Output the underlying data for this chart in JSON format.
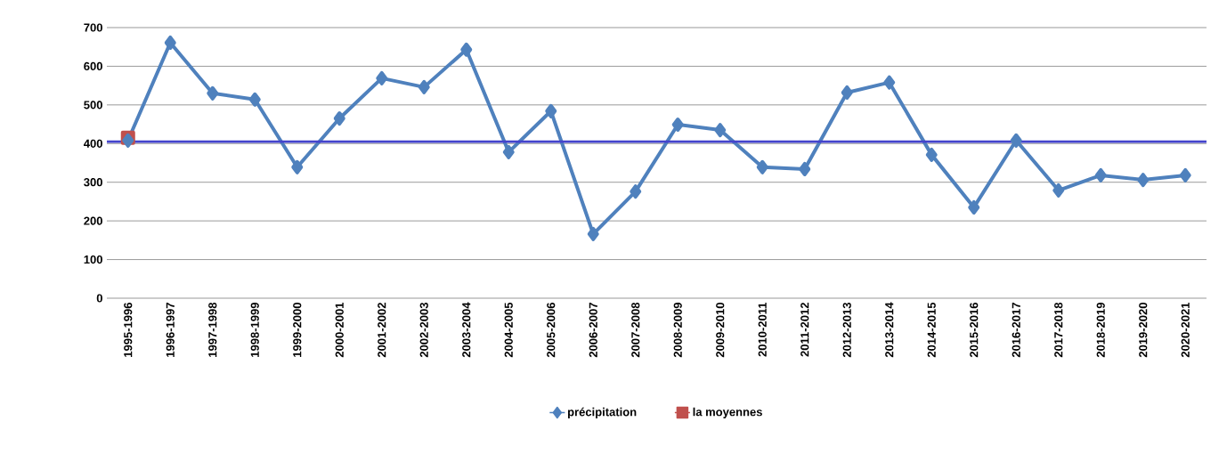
{
  "chart_data": {
    "type": "line",
    "categories": [
      "1995-1996",
      "1996-1997",
      "1997-1998",
      "1998-1999",
      "1999-2000",
      "2000-2001",
      "2001-2002",
      "2002-2003",
      "2003-2004",
      "2004-2005",
      "2005-2006",
      "2006-2007",
      "2007-2008",
      "2008-2009",
      "2009-2010",
      "2010-2011",
      "2011-2012",
      "2012-2013",
      "2013-2014",
      "2014-2015",
      "2015-2016",
      "2016-2017",
      "2017-2018",
      "2018-2019",
      "2019-2020",
      "2020-2021"
    ],
    "series": [
      {
        "name": "précipitation",
        "color": "#4f81bd",
        "marker": "diamond",
        "values": [
          408,
          661,
          530,
          514,
          339,
          465,
          569,
          546,
          643,
          378,
          484,
          166,
          276,
          449,
          435,
          339,
          334,
          532,
          558,
          371,
          235,
          408,
          279,
          318,
          306,
          318
        ]
      },
      {
        "name": "la moyennes",
        "color": "#c0504d",
        "marker": "square",
        "values": [
          415,
          null,
          null,
          null,
          null,
          null,
          null,
          null,
          null,
          null,
          null,
          null,
          null,
          null,
          null,
          null,
          null,
          null,
          null,
          null,
          null,
          null,
          null,
          null,
          null,
          null
        ]
      }
    ],
    "ylim": [
      0,
      700
    ],
    "yticks": [
      0,
      100,
      200,
      300,
      400,
      500,
      600,
      700
    ],
    "grid": "y",
    "legend": "bottom",
    "ref_lines": [
      {
        "axis": "y",
        "value": 405,
        "color": "#4444cc"
      }
    ]
  }
}
